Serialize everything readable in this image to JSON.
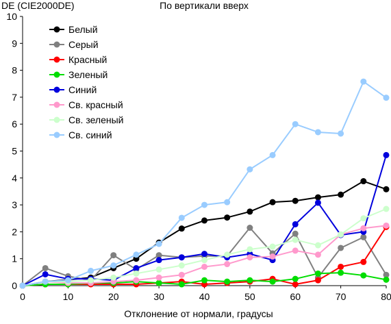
{
  "chart_data": {
    "type": "line",
    "title": "По вертикали вверх",
    "ylabel": "DE (CIE2000DE)",
    "xlabel": "Отклонение от нормали, градусы",
    "x": [
      0,
      5,
      10,
      15,
      20,
      25,
      30,
      35,
      40,
      45,
      50,
      55,
      60,
      65,
      70,
      75,
      80
    ],
    "xlim": [
      0,
      80
    ],
    "ylim": [
      0,
      10
    ],
    "xticks": [
      0,
      10,
      20,
      30,
      40,
      50,
      60,
      70,
      80
    ],
    "yticks": [
      0,
      1,
      2,
      3,
      4,
      5,
      6,
      7,
      8,
      9,
      10
    ],
    "grid": false,
    "legend_position": "top-left",
    "series": [
      {
        "name": "Белый",
        "color": "#000000",
        "values": [
          0.0,
          0.15,
          0.22,
          0.3,
          0.65,
          1.0,
          1.6,
          2.12,
          2.42,
          2.53,
          2.75,
          3.1,
          3.15,
          3.28,
          3.38,
          3.88,
          3.58
        ]
      },
      {
        "name": "Серый",
        "color": "#808080",
        "values": [
          0.0,
          0.65,
          0.35,
          0.2,
          1.13,
          0.6,
          1.13,
          1.05,
          1.1,
          1.1,
          2.15,
          1.2,
          1.93,
          0.3,
          1.4,
          1.8,
          0.4
        ]
      },
      {
        "name": "Красный",
        "color": "#ff0000",
        "values": [
          0.0,
          0.05,
          0.05,
          0.05,
          0.05,
          0.05,
          0.1,
          0.15,
          0.05,
          0.1,
          0.15,
          0.25,
          0.05,
          0.2,
          0.7,
          0.88,
          2.18
        ]
      },
      {
        "name": "Зеленый",
        "color": "#00dd00",
        "values": [
          0.0,
          0.05,
          0.05,
          0.1,
          0.1,
          0.15,
          0.1,
          0.05,
          0.2,
          0.15,
          0.2,
          0.15,
          0.25,
          0.45,
          0.48,
          0.38,
          0.22
        ]
      },
      {
        "name": "Синий",
        "color": "#0000dd",
        "values": [
          0.0,
          0.42,
          0.25,
          0.25,
          0.2,
          0.65,
          0.95,
          1.05,
          1.18,
          1.05,
          1.18,
          0.95,
          2.28,
          3.08,
          1.88,
          2.0,
          4.85
        ]
      },
      {
        "name": "Св. красный",
        "color": "#ff99cc",
        "values": [
          0.0,
          0.15,
          0.1,
          0.1,
          0.15,
          0.2,
          0.3,
          0.4,
          0.7,
          0.8,
          1.05,
          1.08,
          1.3,
          1.15,
          1.9,
          2.13,
          2.23
        ]
      },
      {
        "name": "Св. зеленый",
        "color": "#ccffcc",
        "values": [
          0.0,
          0.15,
          0.15,
          0.2,
          0.3,
          0.45,
          0.6,
          0.75,
          0.95,
          1.15,
          1.35,
          1.45,
          1.7,
          1.5,
          1.9,
          2.5,
          2.85
        ]
      },
      {
        "name": "Св. синий",
        "color": "#99ccff",
        "values": [
          0.0,
          0.15,
          0.2,
          0.55,
          0.75,
          1.15,
          1.55,
          2.52,
          3.0,
          3.1,
          4.32,
          4.85,
          6.0,
          5.7,
          5.65,
          7.58,
          6.98
        ]
      }
    ]
  }
}
